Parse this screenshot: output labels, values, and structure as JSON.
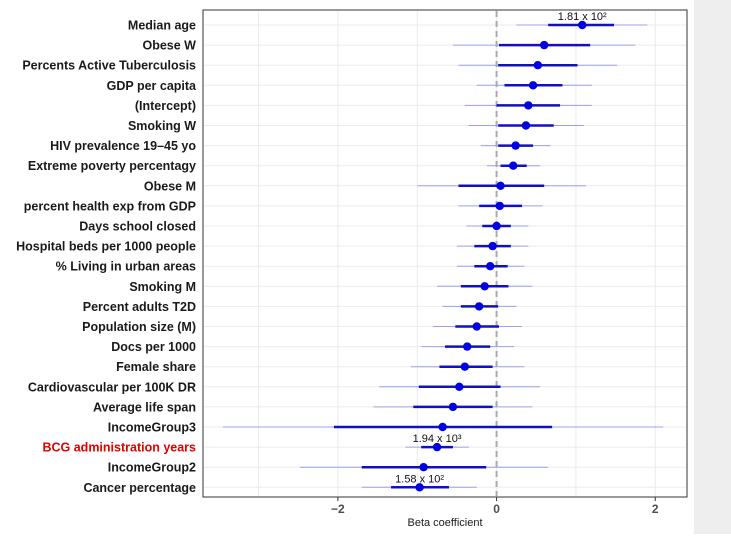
{
  "chart_data": {
    "type": "scatter",
    "subtype": "forest-plot",
    "title": "",
    "xlabel": "Beta coefficient",
    "ylabel": "",
    "xlim": [
      -3.7,
      2.4
    ],
    "xticks": [
      {
        "value": -2,
        "label": "−2"
      },
      {
        "value": 0,
        "label": "0"
      },
      {
        "value": 2,
        "label": "2"
      }
    ],
    "reference_line": 0,
    "grid": true,
    "colors": {
      "point": "#0000e0",
      "thick_interval": "#1010c0",
      "thin_interval": "#9da0ef",
      "highlight_label": "#e00000",
      "label": "#1a1a1a",
      "reference_line": "#aaaaaa",
      "panel_grid": "#ebebeb"
    },
    "rows": [
      {
        "label": "Median age",
        "estimate": 1.08,
        "inner": [
          0.65,
          1.48
        ],
        "outer": [
          0.25,
          1.9
        ],
        "annotation": "1.81 x 10²",
        "highlight": false
      },
      {
        "label": "Obese W",
        "estimate": 0.6,
        "inner": [
          0.03,
          1.18
        ],
        "outer": [
          -0.55,
          1.75
        ],
        "highlight": false
      },
      {
        "label": "Percents Active Tuberculosis",
        "estimate": 0.52,
        "inner": [
          0.02,
          1.02
        ],
        "outer": [
          -0.48,
          1.52
        ],
        "highlight": false
      },
      {
        "label": "GDP per capita",
        "estimate": 0.46,
        "inner": [
          0.1,
          0.83
        ],
        "outer": [
          -0.25,
          1.2
        ],
        "highlight": false
      },
      {
        "label": "(Intercept)",
        "estimate": 0.4,
        "inner": [
          0.0,
          0.8
        ],
        "outer": [
          -0.4,
          1.2
        ],
        "highlight": false
      },
      {
        "label": "Smoking W",
        "estimate": 0.37,
        "inner": [
          0.02,
          0.72
        ],
        "outer": [
          -0.35,
          1.1
        ],
        "highlight": false
      },
      {
        "label": "HIV prevalence 19–45 yo",
        "estimate": 0.24,
        "inner": [
          0.02,
          0.46
        ],
        "outer": [
          -0.2,
          0.68
        ],
        "highlight": false
      },
      {
        "label": "Extreme poverty percentagy",
        "estimate": 0.21,
        "inner": [
          0.05,
          0.38
        ],
        "outer": [
          -0.12,
          0.55
        ],
        "highlight": false
      },
      {
        "label": "Obese M",
        "estimate": 0.05,
        "inner": [
          -0.48,
          0.6
        ],
        "outer": [
          -1.0,
          1.13
        ],
        "highlight": false
      },
      {
        "label": "percent health exp from GDP",
        "estimate": 0.04,
        "inner": [
          -0.22,
          0.32
        ],
        "outer": [
          -0.48,
          0.58
        ],
        "highlight": false
      },
      {
        "label": "Days school closed",
        "estimate": 0.0,
        "inner": [
          -0.18,
          0.18
        ],
        "outer": [
          -0.38,
          0.4
        ],
        "highlight": false
      },
      {
        "label": "Hospital beds per 1000 people",
        "estimate": -0.05,
        "inner": [
          -0.28,
          0.18
        ],
        "outer": [
          -0.5,
          0.4
        ],
        "highlight": false
      },
      {
        "label": "% Living in urban areas",
        "estimate": -0.08,
        "inner": [
          -0.28,
          0.14
        ],
        "outer": [
          -0.5,
          0.35
        ],
        "highlight": false
      },
      {
        "label": "Smoking M",
        "estimate": -0.15,
        "inner": [
          -0.45,
          0.15
        ],
        "outer": [
          -0.75,
          0.45
        ],
        "highlight": false
      },
      {
        "label": "Percent adults T2D",
        "estimate": -0.22,
        "inner": [
          -0.45,
          0.02
        ],
        "outer": [
          -0.68,
          0.25
        ],
        "highlight": false
      },
      {
        "label": "Population size (M)",
        "estimate": -0.25,
        "inner": [
          -0.52,
          0.03
        ],
        "outer": [
          -0.8,
          0.32
        ],
        "highlight": false
      },
      {
        "label": "Docs per 1000",
        "estimate": -0.37,
        "inner": [
          -0.65,
          -0.08
        ],
        "outer": [
          -0.95,
          0.22
        ],
        "highlight": false
      },
      {
        "label": "Female share",
        "estimate": -0.4,
        "inner": [
          -0.72,
          -0.05
        ],
        "outer": [
          -1.08,
          0.35
        ],
        "highlight": false
      },
      {
        "label": "Cardiovascular per 100K DR",
        "estimate": -0.47,
        "inner": [
          -0.98,
          0.05
        ],
        "outer": [
          -1.48,
          0.55
        ],
        "highlight": false
      },
      {
        "label": "Average life span",
        "estimate": -0.55,
        "inner": [
          -1.05,
          -0.05
        ],
        "outer": [
          -1.55,
          0.45
        ],
        "highlight": false
      },
      {
        "label": "IncomeGroup3",
        "estimate": -0.68,
        "inner": [
          -2.05,
          0.7
        ],
        "outer": [
          -3.45,
          2.1
        ],
        "highlight": false
      },
      {
        "label": "BCG administration years",
        "estimate": -0.75,
        "inner": [
          -0.95,
          -0.55
        ],
        "outer": [
          -1.15,
          -0.35
        ],
        "annotation": "1.94 x 10³",
        "highlight": true
      },
      {
        "label": "IncomeGroup2",
        "estimate": -0.92,
        "inner": [
          -1.7,
          -0.13
        ],
        "outer": [
          -2.48,
          0.65
        ],
        "highlight": false
      },
      {
        "label": "Cancer percentage",
        "estimate": -0.97,
        "inner": [
          -1.33,
          -0.6
        ],
        "outer": [
          -1.7,
          -0.25
        ],
        "annotation": "1.58 x 10²",
        "highlight": false
      }
    ]
  }
}
